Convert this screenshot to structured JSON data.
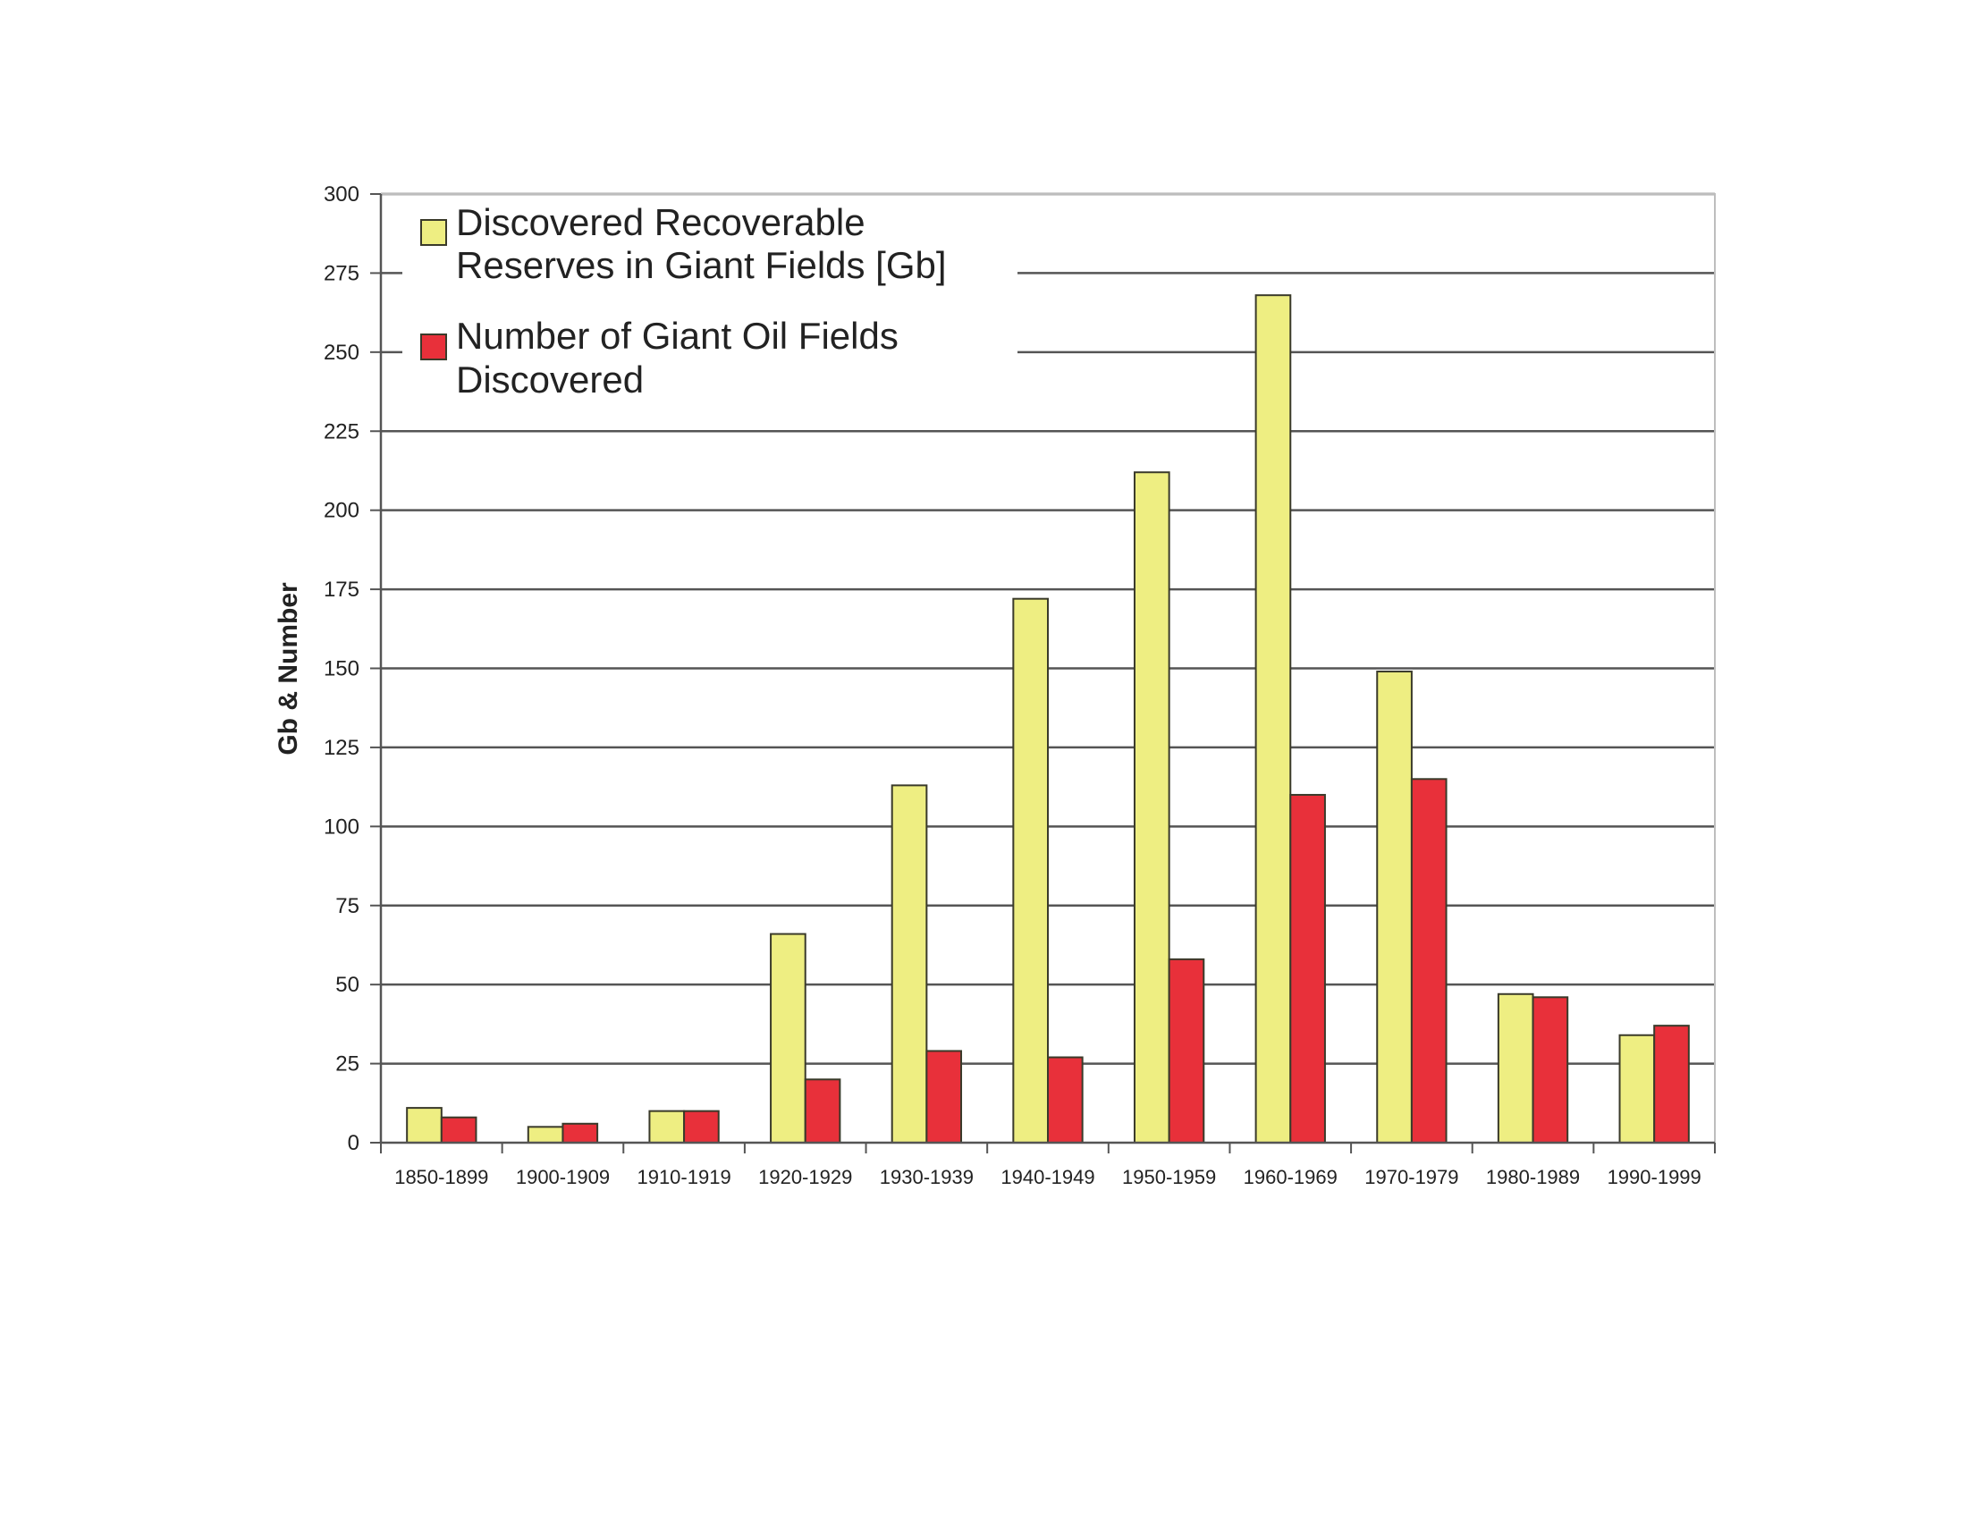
{
  "chart_data": {
    "type": "bar",
    "title": "",
    "xlabel": "",
    "ylabel": "Gb & Number",
    "ylim": [
      0,
      300
    ],
    "yticks": [
      0,
      25,
      50,
      75,
      100,
      125,
      150,
      175,
      200,
      225,
      250,
      275,
      300
    ],
    "grid": true,
    "legend_position": "top-left",
    "categories": [
      "1850-1899",
      "1900-1909",
      "1910-1919",
      "1920-1929",
      "1930-1939",
      "1940-1949",
      "1950-1959",
      "1960-1969",
      "1970-1979",
      "1980-1989",
      "1990-1999"
    ],
    "series": [
      {
        "name": "Discovered Recoverable Reserves in Giant Fields [Gb]",
        "legend_lines": [
          "Discovered Recoverable",
          "Reserves in Giant Fields [Gb]"
        ],
        "color": "#eeee82",
        "values": [
          11,
          5,
          10,
          66,
          113,
          172,
          212,
          268,
          149,
          47,
          34
        ]
      },
      {
        "name": "Number of Giant Oil Fields Discovered",
        "legend_lines": [
          "Number of Giant Oil Fields",
          "Discovered"
        ],
        "color": "#e8303a",
        "values": [
          8,
          6,
          10,
          20,
          29,
          27,
          58,
          110,
          115,
          46,
          37
        ]
      }
    ]
  }
}
